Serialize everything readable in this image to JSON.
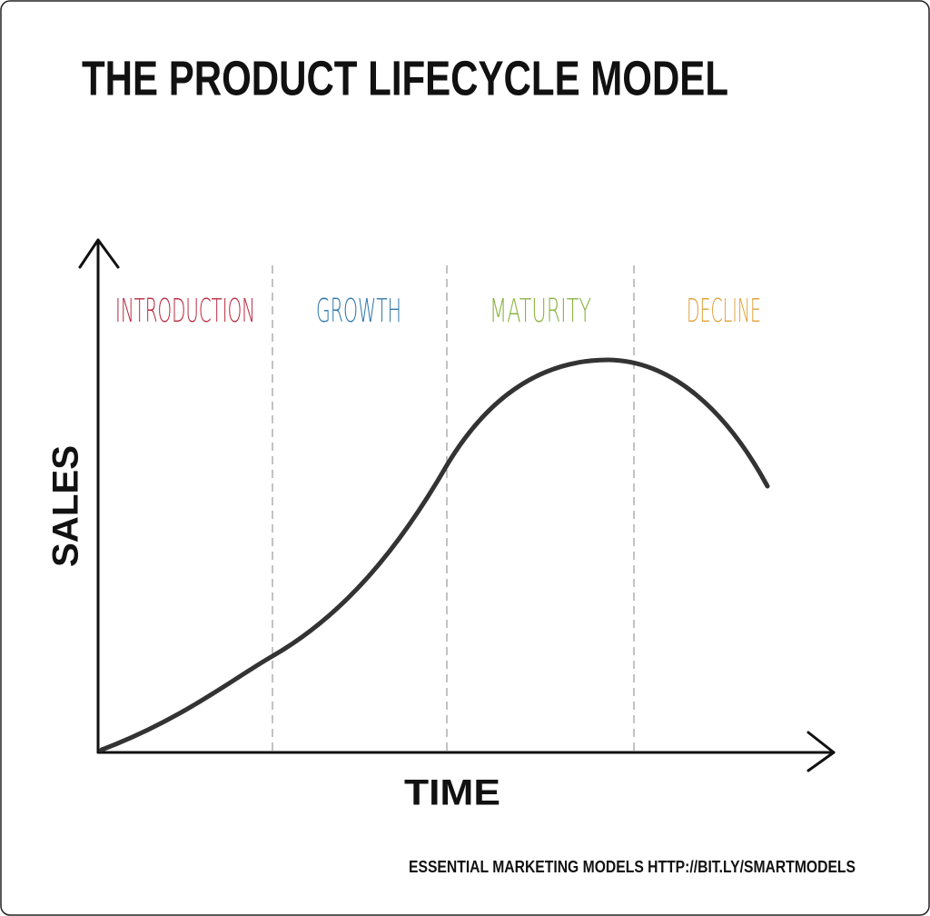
{
  "title": "THE PRODUCT LIFECYCLE MODEL",
  "stages": [
    {
      "label": "INTRODUCTION",
      "color": "#b82a40"
    },
    {
      "label": "GROWTH",
      "color": "#2f78ad"
    },
    {
      "label": "MATURITY",
      "color": "#8bb442"
    },
    {
      "label": "DECLINE",
      "color": "#e0a23c"
    }
  ],
  "axes": {
    "y": "SALES",
    "x": "TIME"
  },
  "footer": "ESSENTIAL MARKETING MODELS HTTP://BIT.LY/SMARTMODELS"
}
